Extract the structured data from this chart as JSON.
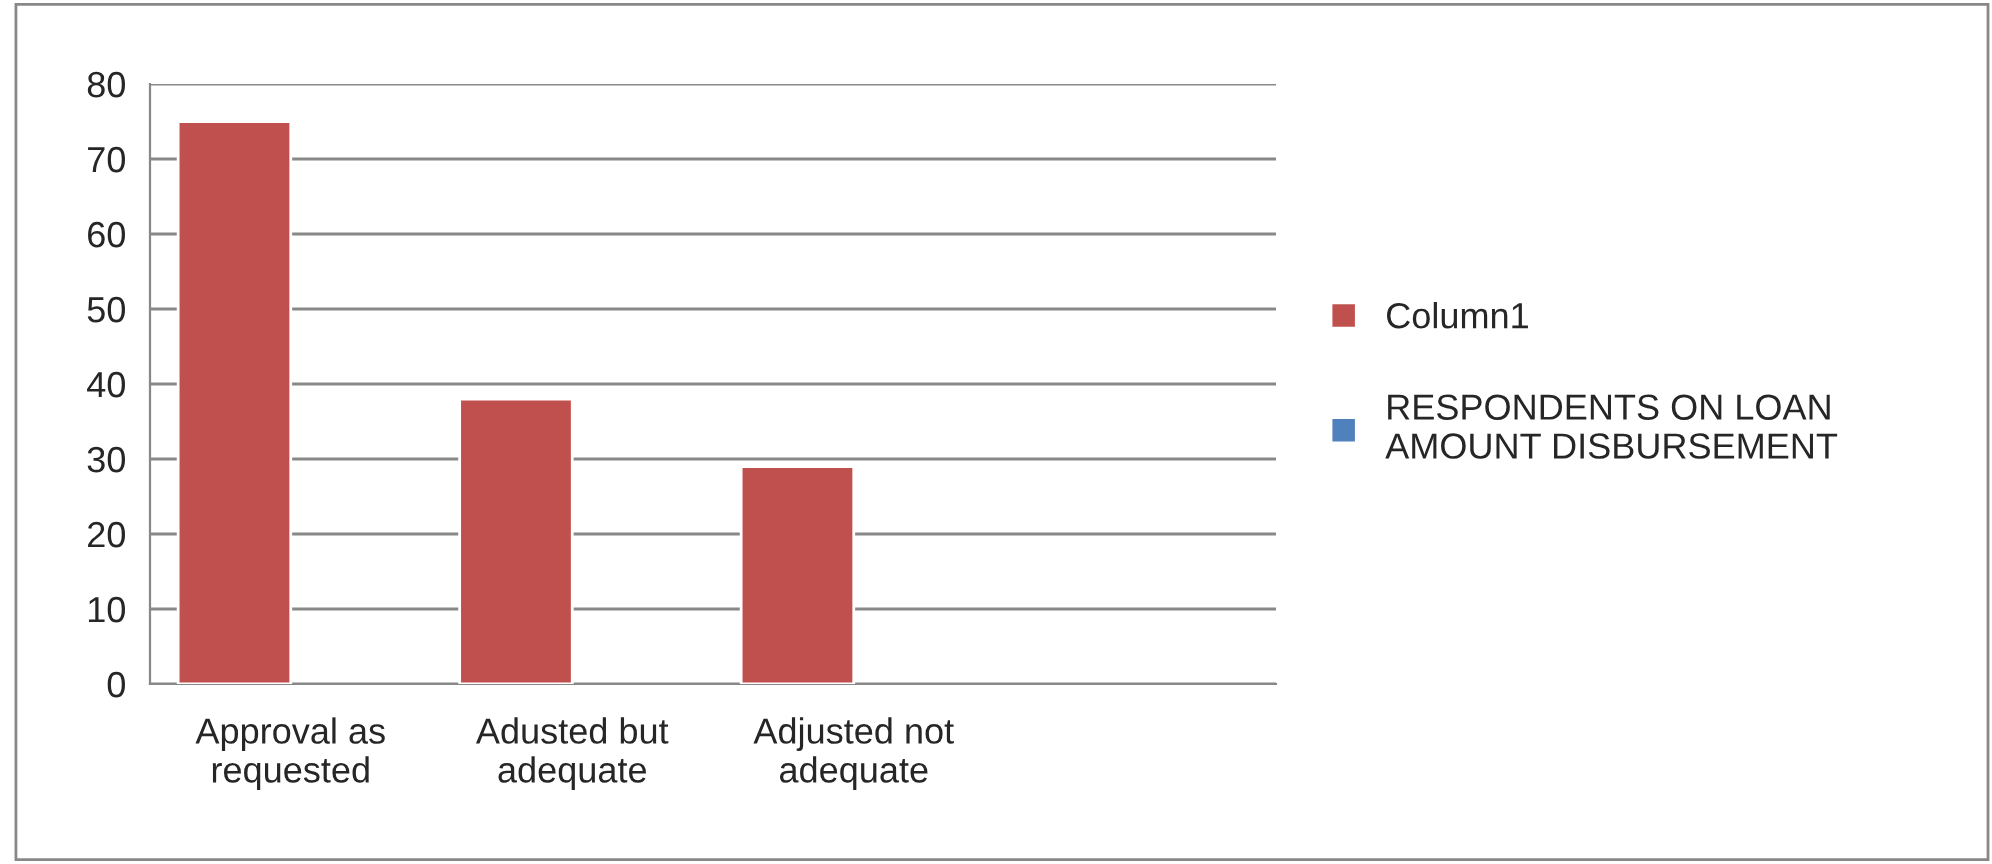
{
  "chart_data": {
    "type": "bar",
    "categories": [
      "Approval as\nrequested",
      "Adusted but\nadequate",
      "Adjusted not\nadequate",
      null
    ],
    "series": [
      {
        "name": "Column1",
        "color": "#c0504d",
        "values": [
          75,
          38,
          29,
          null
        ]
      },
      {
        "name": "RESPONDENTS ON LOAN\nAMOUNT DISBURSEMENT",
        "color": "#4f81bd",
        "values": [
          null,
          null,
          null,
          null
        ]
      }
    ],
    "ylim": [
      0,
      80
    ],
    "yticks": [
      0,
      10,
      20,
      30,
      40,
      50,
      60,
      70,
      80
    ],
    "grid": "y",
    "legend": "right"
  }
}
